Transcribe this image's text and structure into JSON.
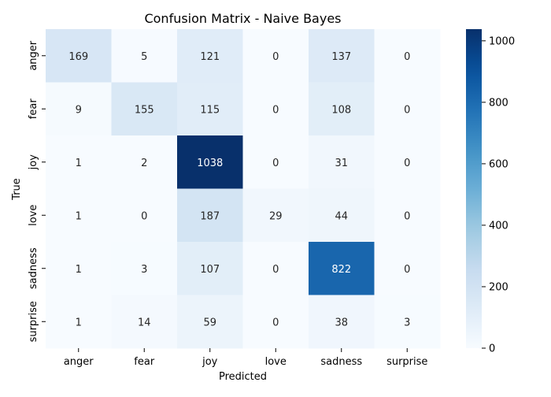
{
  "chart_data": {
    "type": "heatmap",
    "title": "Confusion Matrix - Naive Bayes",
    "xlabel": "Predicted",
    "ylabel": "True",
    "x_categories": [
      "anger",
      "fear",
      "joy",
      "love",
      "sadness",
      "surprise"
    ],
    "y_categories": [
      "anger",
      "fear",
      "joy",
      "love",
      "sadness",
      "surprise"
    ],
    "values": [
      [
        169,
        5,
        121,
        0,
        137,
        0
      ],
      [
        9,
        155,
        115,
        0,
        108,
        0
      ],
      [
        1,
        2,
        1038,
        0,
        31,
        0
      ],
      [
        1,
        0,
        187,
        29,
        44,
        0
      ],
      [
        1,
        3,
        107,
        0,
        822,
        0
      ],
      [
        1,
        14,
        59,
        0,
        38,
        3
      ]
    ],
    "colormap": "Blues",
    "colorbar": {
      "min": 0,
      "max": 1038,
      "ticks": [
        0,
        200,
        400,
        600,
        800,
        1000
      ]
    }
  }
}
